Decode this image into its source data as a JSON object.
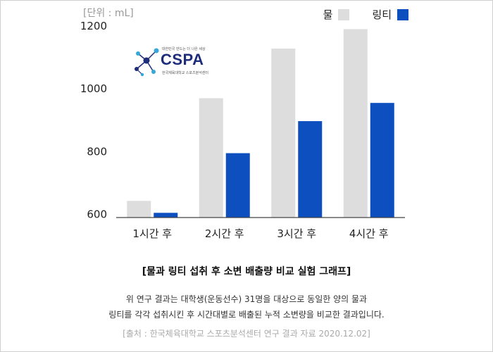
{
  "unit_label": "[단위 : mL]",
  "legend": [
    {
      "name": "물",
      "color": "#dddddd"
    },
    {
      "name": "링티",
      "color": "#0d4fbf"
    }
  ],
  "logo": {
    "tagline": "대한민국 만드는 더 나은 세상",
    "name": "CSPA",
    "org": "한국체육대학교 스포츠분석센터",
    "color": "#1e2d7a",
    "node_color": "#36a8d8"
  },
  "chart_data": {
    "type": "bar",
    "categories": [
      "1시간 후",
      "2시간 후",
      "3시간 후",
      "4시간 후"
    ],
    "series": [
      {
        "name": "물",
        "color": "#dddddd",
        "values": [
          643,
          970,
          1128,
          1190
        ]
      },
      {
        "name": "링티",
        "color": "#0d4fbf",
        "values": [
          605,
          795,
          897,
          955
        ]
      }
    ],
    "ylim": [
      590,
      1220
    ],
    "yticks": [
      600,
      800,
      1000,
      1200
    ],
    "grid": false,
    "legend_position": "top-right"
  },
  "caption": {
    "title": "[물과 링티 섭취 후 소변 배출량 비교 실험 그래프]",
    "line1": "위 연구 결과는 대학생(운동선수) 31명을 대상으로 동일한 양의 물과",
    "line2": "링티를 각각 섭취시킨 후 시간대별로 배출된 누적 소변량을 비교한 결과입니다."
  },
  "source": "[출처 : 한국체육대학교 스포츠분석센터 연구 결과 자료 2020.12.02]"
}
